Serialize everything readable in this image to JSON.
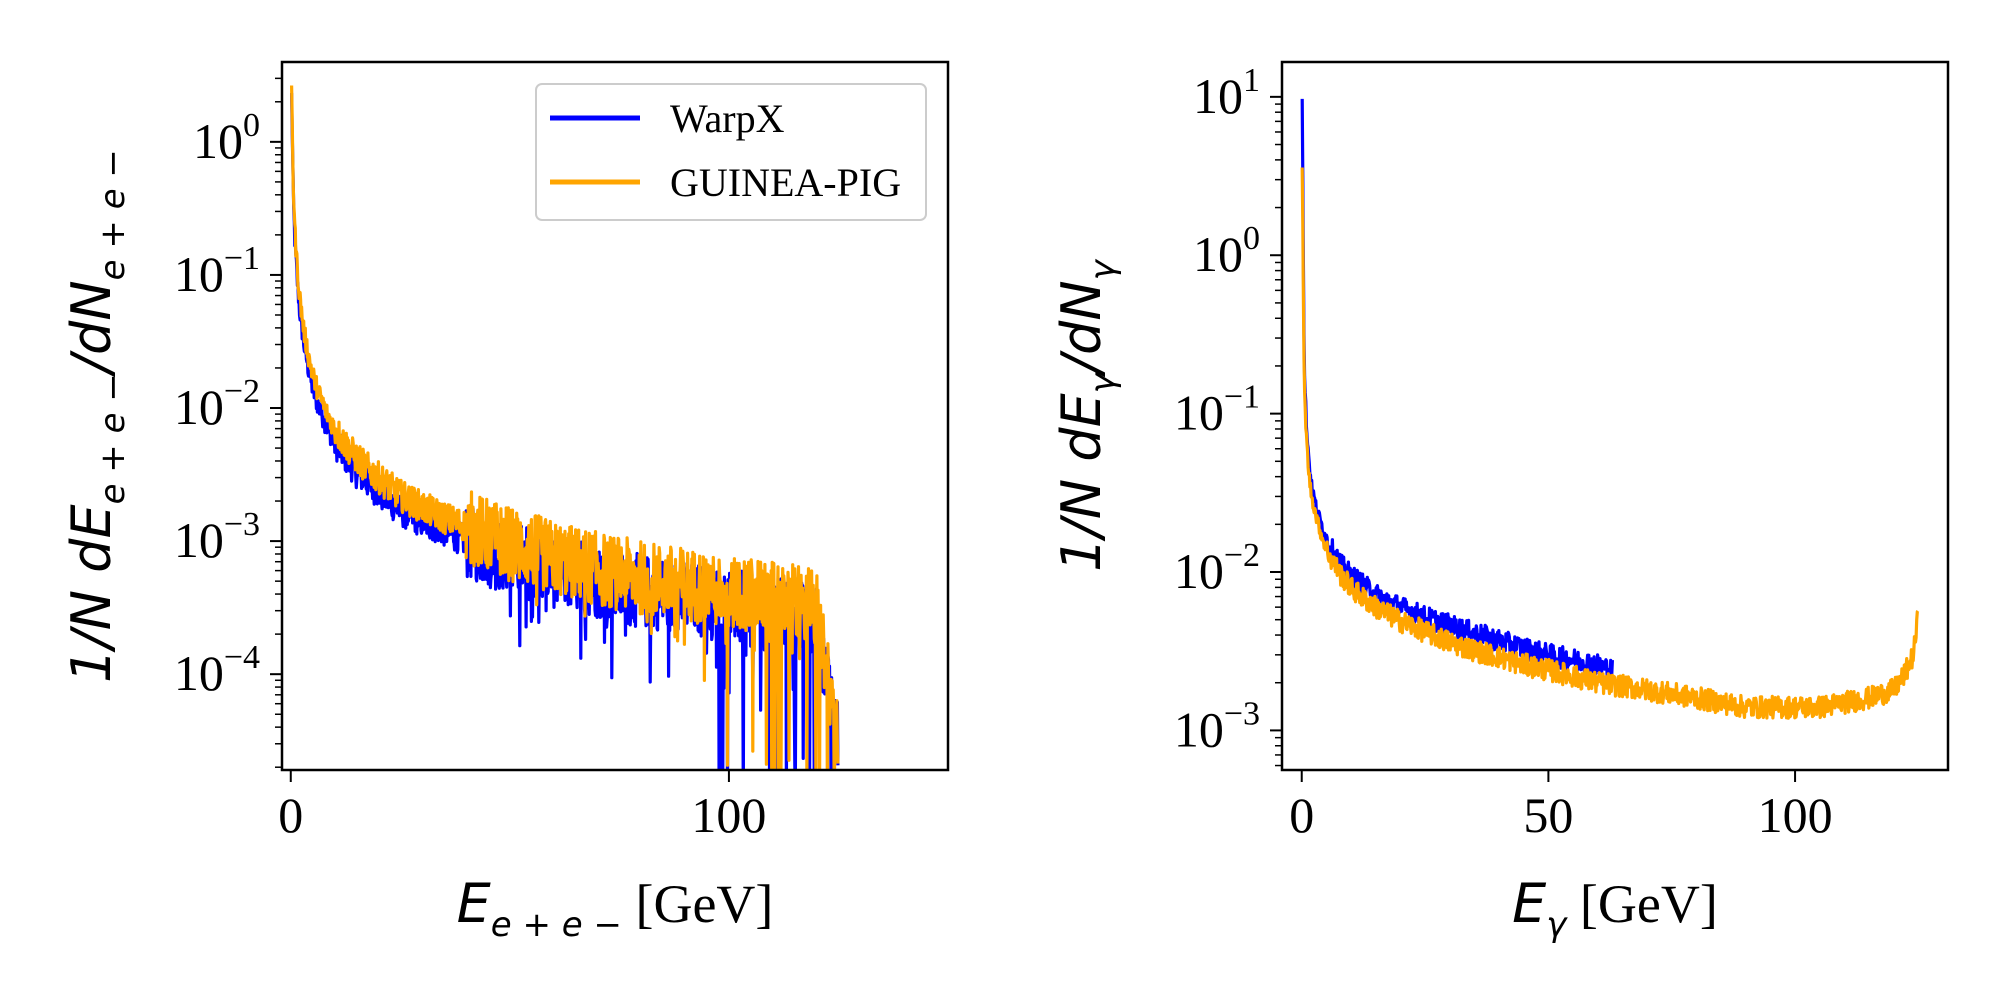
{
  "chart_data": [
    {
      "type": "line",
      "ylog": true,
      "xlim": [
        -2,
        150
      ],
      "ylim_exp": [
        -4.72,
        0.6
      ],
      "xticks": [
        {
          "value": 0,
          "label": "0"
        },
        {
          "value": 100,
          "label": "100"
        }
      ],
      "yticks": [
        {
          "value": 1,
          "base": "10",
          "exp": "0"
        },
        {
          "value": 0.1,
          "base": "10",
          "exp": "−1"
        },
        {
          "value": 0.01,
          "base": "10",
          "exp": "−2"
        },
        {
          "value": 0.001,
          "base": "10",
          "exp": "−3"
        },
        {
          "value": 0.0001,
          "base": "10",
          "exp": "−4"
        }
      ],
      "xlabel": {
        "symbol": "E",
        "sub": "e + e −",
        "unit": " [GeV]"
      },
      "ylabel": {
        "prefix": "1/N dE",
        "sub": "e + e −",
        "mid": "/dN",
        "sub2": "e + e −"
      },
      "legend": {
        "position": "top-right",
        "entries": [
          "WarpX",
          "GUINEA-PIG"
        ]
      },
      "series": [
        {
          "name": "WarpX",
          "color": "#0000ff",
          "x": [
            0.2,
            0.6,
            1,
            1.5,
            2,
            3,
            4,
            5,
            6,
            8,
            10,
            12,
            15,
            18,
            20,
            25,
            30,
            35,
            40,
            45,
            50,
            55,
            60,
            65,
            70,
            75,
            80,
            85,
            90,
            95,
            100,
            105,
            110,
            115,
            120,
            125
          ],
          "y": [
            2.2,
            0.35,
            0.16,
            0.09,
            0.055,
            0.03,
            0.02,
            0.014,
            0.011,
            0.0075,
            0.0055,
            0.0045,
            0.0033,
            0.0027,
            0.0023,
            0.0017,
            0.0014,
            0.0012,
            0.001,
            0.00085,
            0.00075,
            0.00068,
            0.0006,
            0.00055,
            0.0005,
            0.00045,
            0.00042,
            0.0004,
            0.00037,
            0.00035,
            0.00033,
            0.0003,
            0.00028,
            0.00027,
            0.00025,
            3e-05
          ]
        },
        {
          "name": "GUINEA-PIG",
          "color": "#ffa500",
          "x": [
            0.2,
            0.6,
            1,
            1.5,
            2,
            3,
            4,
            5,
            6,
            8,
            10,
            12,
            15,
            18,
            20,
            25,
            30,
            35,
            40,
            45,
            50,
            55,
            60,
            65,
            70,
            75,
            80,
            85,
            90,
            95,
            100,
            105,
            110,
            115,
            120,
            125
          ],
          "y": [
            2.3,
            0.45,
            0.2,
            0.11,
            0.07,
            0.038,
            0.025,
            0.018,
            0.014,
            0.0095,
            0.007,
            0.0056,
            0.0042,
            0.0034,
            0.003,
            0.0022,
            0.0018,
            0.0015,
            0.0013,
            0.0011,
            0.00095,
            0.00085,
            0.00075,
            0.00068,
            0.00062,
            0.00057,
            0.00053,
            0.0005,
            0.00047,
            0.00045,
            0.00042,
            0.0004,
            0.00037,
            0.00035,
            0.00033,
            3e-05
          ]
        }
      ]
    },
    {
      "type": "line",
      "ylog": true,
      "xlim": [
        -4,
        131
      ],
      "ylim_exp": [
        -3.25,
        1.22
      ],
      "xticks": [
        {
          "value": 0,
          "label": "0"
        },
        {
          "value": 50,
          "label": "50"
        },
        {
          "value": 100,
          "label": "100"
        }
      ],
      "yticks": [
        {
          "value": 10,
          "base": "10",
          "exp": "1"
        },
        {
          "value": 1,
          "base": "10",
          "exp": "0"
        },
        {
          "value": 0.1,
          "base": "10",
          "exp": "−1"
        },
        {
          "value": 0.01,
          "base": "10",
          "exp": "−2"
        },
        {
          "value": 0.001,
          "base": "10",
          "exp": "−3"
        }
      ],
      "xlabel": {
        "symbol": "E",
        "sub": "γ",
        "unit": " [GeV]"
      },
      "ylabel": {
        "prefix": "1/N dE",
        "sub": "γ",
        "mid": "/dN",
        "sub2": "γ"
      },
      "series": [
        {
          "name": "WarpX",
          "color": "#0000ff",
          "x": [
            0.1,
            0.5,
            1,
            1.5,
            2,
            3,
            4,
            5,
            6,
            8,
            10,
            12,
            15,
            18,
            20,
            25,
            30,
            35,
            40,
            45,
            50,
            55,
            60,
            63
          ],
          "y": [
            10.5,
            0.2,
            0.08,
            0.05,
            0.035,
            0.025,
            0.02,
            0.016,
            0.014,
            0.011,
            0.0095,
            0.0085,
            0.0072,
            0.0064,
            0.006,
            0.0052,
            0.0046,
            0.0041,
            0.0037,
            0.0033,
            0.003,
            0.0028,
            0.0026,
            0.0024
          ]
        },
        {
          "name": "GUINEA-PIG",
          "color": "#ffa500",
          "x": [
            0.1,
            0.5,
            1,
            1.5,
            2,
            3,
            4,
            5,
            6,
            8,
            10,
            12,
            15,
            18,
            20,
            25,
            30,
            35,
            40,
            45,
            50,
            55,
            60,
            65,
            70,
            75,
            80,
            85,
            90,
            95,
            100,
            105,
            110,
            115,
            120,
            122,
            124,
            125
          ],
          "y": [
            3.8,
            0.15,
            0.065,
            0.04,
            0.03,
            0.022,
            0.017,
            0.014,
            0.012,
            0.0095,
            0.008,
            0.007,
            0.006,
            0.0053,
            0.0049,
            0.0042,
            0.0036,
            0.0032,
            0.0029,
            0.0026,
            0.0024,
            0.0022,
            0.002,
            0.0019,
            0.0018,
            0.0017,
            0.0016,
            0.0015,
            0.0014,
            0.0014,
            0.0014,
            0.0014,
            0.0015,
            0.0016,
            0.0018,
            0.0022,
            0.003,
            0.0055
          ]
        }
      ]
    }
  ]
}
